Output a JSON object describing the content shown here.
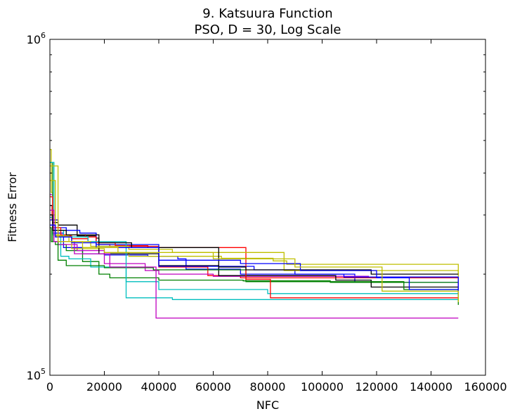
{
  "chart_data": {
    "type": "line",
    "title_line1": "9.   Katsuura Function",
    "title_line2": "PSO, D = 30, Log Scale",
    "xlabel": "NFC",
    "ylabel": "Fitness Error",
    "xlim": [
      0,
      160000
    ],
    "ylim": [
      100000,
      1000000
    ],
    "yscale": "log",
    "grid": false,
    "legend": "none",
    "x_ticks": [
      {
        "value": 0,
        "label": "0"
      },
      {
        "value": 20000,
        "label": "20000"
      },
      {
        "value": 40000,
        "label": "40000"
      },
      {
        "value": 60000,
        "label": "60000"
      },
      {
        "value": 80000,
        "label": "80000"
      },
      {
        "value": 100000,
        "label": "100000"
      },
      {
        "value": 120000,
        "label": "120000"
      },
      {
        "value": 140000,
        "label": "140000"
      },
      {
        "value": 160000,
        "label": "160000"
      }
    ],
    "y_ticks": [
      {
        "value": 100000,
        "base": "10",
        "exp": "5"
      },
      {
        "value": 1000000,
        "base": "10",
        "exp": "6"
      }
    ],
    "series": [
      {
        "color": "#0000ff",
        "points": [
          [
            0,
            300000
          ],
          [
            1000,
            265000
          ],
          [
            5000,
            240000
          ],
          [
            12000,
            230000
          ],
          [
            20000,
            228000
          ],
          [
            36000,
            226000
          ],
          [
            47000,
            222000
          ],
          [
            50000,
            207000
          ],
          [
            70000,
            200000
          ],
          [
            112000,
            189000
          ],
          [
            150000,
            189000
          ]
        ]
      },
      {
        "color": "#008000",
        "points": [
          [
            0,
            275000
          ],
          [
            500,
            250000
          ],
          [
            2000,
            245000
          ],
          [
            6000,
            235000
          ],
          [
            12000,
            218000
          ],
          [
            18000,
            200000
          ],
          [
            22000,
            195000
          ],
          [
            40000,
            192000
          ],
          [
            71000,
            191000
          ],
          [
            103000,
            189000
          ],
          [
            150000,
            189000
          ]
        ]
      },
      {
        "color": "#ff0000",
        "points": [
          [
            0,
            320000
          ],
          [
            800,
            290000
          ],
          [
            3000,
            260000
          ],
          [
            8000,
            255000
          ],
          [
            14000,
            250000
          ],
          [
            18000,
            245000
          ],
          [
            22000,
            242000
          ],
          [
            40000,
            210000
          ],
          [
            58000,
            198000
          ],
          [
            70000,
            195000
          ],
          [
            150000,
            175000
          ]
        ]
      },
      {
        "color": "#00bfbf",
        "points": [
          [
            0,
            295000
          ],
          [
            1000,
            262000
          ],
          [
            4000,
            226000
          ],
          [
            7000,
            222000
          ],
          [
            15000,
            210000
          ],
          [
            28000,
            190000
          ],
          [
            40000,
            180000
          ],
          [
            80000,
            175000
          ],
          [
            150000,
            175000
          ]
        ]
      },
      {
        "color": "#bf00bf",
        "points": [
          [
            0,
            345000
          ],
          [
            1000,
            270000
          ],
          [
            3000,
            245000
          ],
          [
            10000,
            235000
          ],
          [
            20000,
            215000
          ],
          [
            35000,
            205000
          ],
          [
            40000,
            200000
          ],
          [
            60000,
            197000
          ],
          [
            117000,
            196000
          ],
          [
            150000,
            181000
          ]
        ]
      },
      {
        "color": "#bfbf00",
        "points": [
          [
            0,
            470000
          ],
          [
            500,
            350000
          ],
          [
            1000,
            300000
          ],
          [
            2000,
            262000
          ],
          [
            8000,
            238000
          ],
          [
            20000,
            232000
          ],
          [
            29000,
            226000
          ],
          [
            63000,
            223000
          ],
          [
            82000,
            219000
          ],
          [
            87000,
            214000
          ],
          [
            150000,
            189000
          ]
        ]
      },
      {
        "color": "#000000",
        "points": [
          [
            0,
            320000
          ],
          [
            1000,
            285000
          ],
          [
            3000,
            280000
          ],
          [
            10000,
            260000
          ],
          [
            17000,
            256000
          ],
          [
            18000,
            230000
          ],
          [
            40000,
            212000
          ],
          [
            62000,
            198000
          ],
          [
            105000,
            192000
          ],
          [
            118000,
            183000
          ],
          [
            150000,
            183000
          ]
        ]
      },
      {
        "color": "#0000ff",
        "points": [
          [
            0,
            290000
          ],
          [
            3000,
            275000
          ],
          [
            6000,
            270000
          ],
          [
            11000,
            265000
          ],
          [
            17000,
            245000
          ],
          [
            40000,
            211000
          ],
          [
            75000,
            206000
          ],
          [
            90000,
            200000
          ],
          [
            108000,
            196000
          ],
          [
            150000,
            175000
          ]
        ]
      },
      {
        "color": "#008000",
        "points": [
          [
            0,
            430000
          ],
          [
            1000,
            250000
          ],
          [
            3000,
            220000
          ],
          [
            6000,
            212000
          ],
          [
            20000,
            209000
          ],
          [
            38000,
            206000
          ],
          [
            72000,
            190000
          ],
          [
            130000,
            180000
          ],
          [
            150000,
            162000
          ]
        ]
      },
      {
        "color": "#ff0000",
        "points": [
          [
            0,
            340000
          ],
          [
            1000,
            275000
          ],
          [
            4000,
            262000
          ],
          [
            13000,
            258000
          ],
          [
            17000,
            248000
          ],
          [
            24000,
            243000
          ],
          [
            36000,
            240000
          ],
          [
            72000,
            193000
          ],
          [
            81000,
            170000
          ],
          [
            150000,
            170000
          ]
        ]
      },
      {
        "color": "#00bfbf",
        "points": [
          [
            0,
            430000
          ],
          [
            1500,
            270000
          ],
          [
            5000,
            258000
          ],
          [
            14000,
            250000
          ],
          [
            28000,
            170000
          ],
          [
            45000,
            168000
          ],
          [
            150000,
            168000
          ]
        ]
      },
      {
        "color": "#bf00bf",
        "points": [
          [
            0,
            310000
          ],
          [
            1500,
            250000
          ],
          [
            9000,
            230000
          ],
          [
            22000,
            210000
          ],
          [
            39000,
            148000
          ],
          [
            150000,
            148000
          ]
        ]
      },
      {
        "color": "#bfbf00",
        "points": [
          [
            0,
            380000
          ],
          [
            2000,
            260000
          ],
          [
            7000,
            250000
          ],
          [
            15000,
            242000
          ],
          [
            29000,
            237000
          ],
          [
            45000,
            232000
          ],
          [
            86000,
            205000
          ],
          [
            150000,
            200000
          ]
        ]
      },
      {
        "color": "#000000",
        "points": [
          [
            0,
            300000
          ],
          [
            1000,
            270000
          ],
          [
            6000,
            262000
          ],
          [
            18000,
            248000
          ],
          [
            30000,
            240000
          ],
          [
            62000,
            210000
          ],
          [
            72000,
            206000
          ],
          [
            118000,
            200000
          ],
          [
            150000,
            200000
          ]
        ]
      },
      {
        "color": "#0000ff",
        "points": [
          [
            0,
            280000
          ],
          [
            2000,
            258000
          ],
          [
            8000,
            248000
          ],
          [
            17000,
            240000
          ],
          [
            40000,
            220000
          ],
          [
            70000,
            215000
          ],
          [
            92000,
            205000
          ],
          [
            120000,
            195000
          ],
          [
            132000,
            180000
          ],
          [
            150000,
            172000
          ]
        ]
      },
      {
        "color": "#bfbf00",
        "points": [
          [
            0,
            420000
          ],
          [
            3000,
            250000
          ],
          [
            12000,
            240000
          ],
          [
            25000,
            232000
          ],
          [
            60000,
            222000
          ],
          [
            90000,
            210000
          ],
          [
            122000,
            178000
          ],
          [
            150000,
            165000
          ]
        ]
      }
    ]
  }
}
